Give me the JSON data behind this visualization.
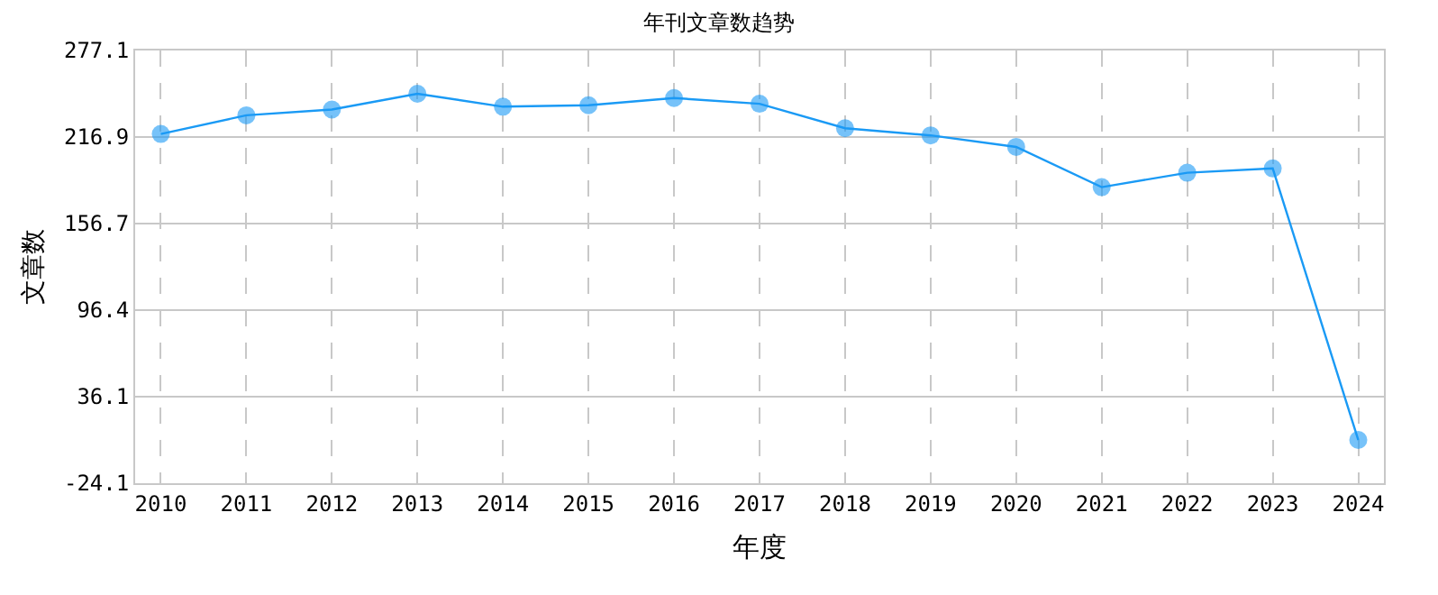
{
  "chart_data": {
    "type": "line",
    "title": "年刊文章数趋势",
    "xlabel": "年度",
    "ylabel": "文章数",
    "categories": [
      "2010",
      "2011",
      "2012",
      "2013",
      "2014",
      "2015",
      "2016",
      "2017",
      "2018",
      "2019",
      "2020",
      "2021",
      "2022",
      "2023",
      "2024"
    ],
    "series": [
      {
        "color": "#1a9af5",
        "values": [
          219,
          232,
          236,
          247,
          238,
          239,
          244,
          240,
          223,
          218,
          210,
          182,
          192,
          195,
          6
        ]
      }
    ],
    "ylim": [
      -24.1,
      277.1
    ],
    "yticks": [
      -24.1,
      36.1,
      96.4,
      156.7,
      216.9,
      277.1
    ],
    "grid": true,
    "marker": "circle",
    "line_style": "solid",
    "legend": false
  }
}
